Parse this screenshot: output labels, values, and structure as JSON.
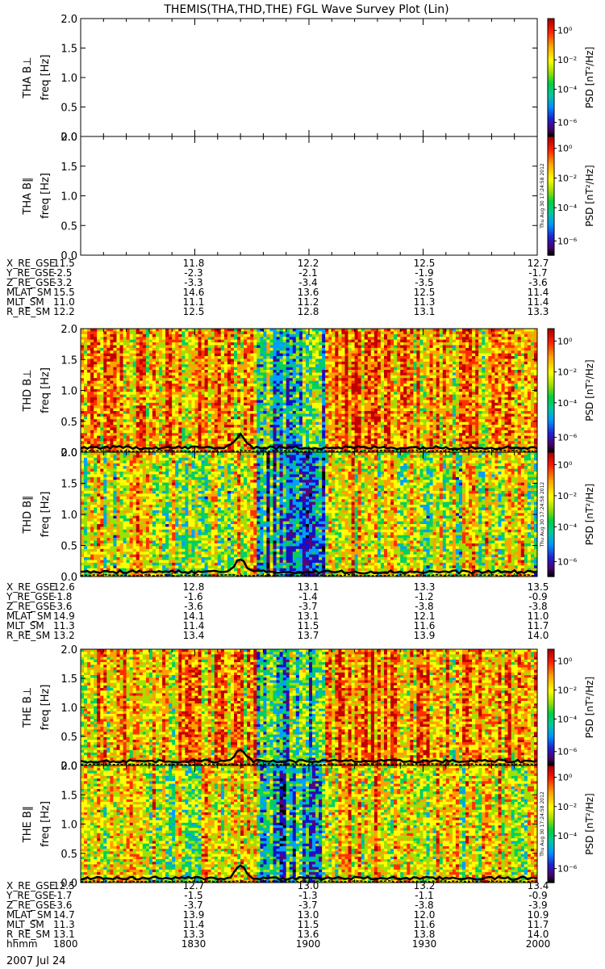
{
  "title": "THEMIS(THA,THD,THE) FGL Wave Survey Plot (Lin)",
  "freq_ticks": [
    "0.0",
    "0.5",
    "1.0",
    "1.5",
    "2.0"
  ],
  "ylabel": "freq [Hz]",
  "colorbar": {
    "label": "PSD [nT²/Hz]",
    "ticks": [
      "10⁰",
      "10⁻²",
      "10⁻⁴",
      "10⁻⁶"
    ],
    "stamp": "Thu Aug 30 17:24:58 2012"
  },
  "colors": {
    "background": "#ffffff",
    "scale": [
      "#000000",
      "#5a007a",
      "#1010d0",
      "#00a0ff",
      "#00d060",
      "#a0e000",
      "#ffff00",
      "#ffa000",
      "#ff3000",
      "#c00000"
    ]
  },
  "chart_data": {
    "type": "heatmap",
    "y_range": [
      0.0,
      2.0
    ],
    "y_unit": "Hz",
    "x_range": [
      "1800",
      "2000"
    ],
    "panels": [
      {
        "id": "THA",
        "labels": [
          "THA B⊥",
          "THA B∥"
        ],
        "data": "none"
      },
      {
        "id": "THD",
        "labels": [
          "THD B⊥",
          "THD B∥"
        ],
        "data": "spectrogram"
      },
      {
        "id": "THE",
        "labels": [
          "THE B⊥",
          "THE B∥"
        ],
        "data": "spectrogram"
      }
    ]
  },
  "ephemeris": [
    {
      "rows": [
        {
          "label": "X_RE_GSE",
          "values": [
            "11.5",
            "11.8",
            "12.2",
            "12.5",
            "12.7"
          ]
        },
        {
          "label": "Y_RE_GSE",
          "values": [
            "-2.5",
            "-2.3",
            "-2.1",
            "-1.9",
            "-1.7"
          ]
        },
        {
          "label": "Z_RE_GSE",
          "values": [
            "-3.2",
            "-3.3",
            "-3.4",
            "-3.5",
            "-3.6"
          ]
        },
        {
          "label": "MLAT_SM",
          "values": [
            "15.5",
            "14.6",
            "13.6",
            "12.5",
            "11.4"
          ]
        },
        {
          "label": "MLT_SM",
          "values": [
            "11.0",
            "11.1",
            "11.2",
            "11.3",
            "11.4"
          ]
        },
        {
          "label": "R_RE_SM",
          "values": [
            "12.2",
            "12.5",
            "12.8",
            "13.1",
            "13.3"
          ]
        }
      ]
    },
    {
      "rows": [
        {
          "label": "X_RE_GSE",
          "values": [
            "12.6",
            "12.8",
            "13.1",
            "13.3",
            "13.5"
          ]
        },
        {
          "label": "Y_RE_GSE",
          "values": [
            "-1.8",
            "-1.6",
            "-1.4",
            "-1.2",
            "-0.9"
          ]
        },
        {
          "label": "Z_RE_GSE",
          "values": [
            "-3.6",
            "-3.6",
            "-3.7",
            "-3.8",
            "-3.8"
          ]
        },
        {
          "label": "MLAT_SM",
          "values": [
            "14.9",
            "14.1",
            "13.1",
            "12.1",
            "11.0"
          ]
        },
        {
          "label": "MLT_SM",
          "values": [
            "11.3",
            "11.4",
            "11.5",
            "11.6",
            "11.7"
          ]
        },
        {
          "label": "R_RE_SM",
          "values": [
            "13.2",
            "13.4",
            "13.7",
            "13.9",
            "14.0"
          ]
        }
      ]
    },
    {
      "rows": [
        {
          "label": "X_RE_GSE",
          "values": [
            "12.5",
            "12.7",
            "13.0",
            "13.2",
            "13.4"
          ]
        },
        {
          "label": "Y_RE_GSE",
          "values": [
            "-1.7",
            "-1.5",
            "-1.3",
            "-1.1",
            "-0.9"
          ]
        },
        {
          "label": "Z_RE_GSE",
          "values": [
            "-3.6",
            "-3.7",
            "-3.7",
            "-3.8",
            "-3.9"
          ]
        },
        {
          "label": "MLAT_SM",
          "values": [
            "14.7",
            "13.9",
            "13.0",
            "12.0",
            "10.9"
          ]
        },
        {
          "label": "MLT_SM",
          "values": [
            "11.3",
            "11.4",
            "11.5",
            "11.6",
            "11.7"
          ]
        },
        {
          "label": "R_RE_SM",
          "values": [
            "13.1",
            "13.3",
            "13.6",
            "13.8",
            "14.0"
          ]
        },
        {
          "label": "hhmm",
          "values": [
            "1800",
            "1830",
            "1900",
            "1930",
            "2000"
          ]
        }
      ]
    }
  ],
  "date": "2007 Jul 24"
}
